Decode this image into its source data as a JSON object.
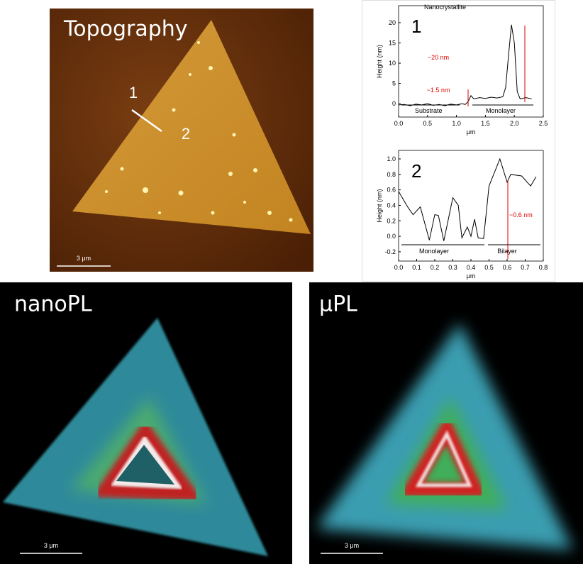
{
  "topography": {
    "label": "Topography",
    "markers": [
      "1",
      "2"
    ],
    "scale_bar": "3 μm"
  },
  "nanoPL": {
    "label": "nanoPL",
    "scale_bar": "3 μm"
  },
  "muPL": {
    "label": "μPL",
    "scale_bar": "3 μm"
  },
  "chart_data": [
    {
      "type": "line",
      "panel_label": "1",
      "x_label": "μm",
      "y_label": "Height (nm)",
      "xlim": [
        0,
        2.5
      ],
      "ylim": [
        -3.3,
        24.2
      ],
      "xticks": [
        {
          "value": 0,
          "label": "0.0"
        },
        0.5,
        {
          "value": 1,
          "label": "1.0"
        },
        1.5,
        {
          "value": 2,
          "label": "2.0"
        },
        2.5
      ],
      "yticks": [
        0,
        5,
        10,
        15,
        20
      ],
      "x": [
        0,
        0.1,
        0.2,
        0.3,
        0.4,
        0.5,
        0.6,
        0.7,
        0.8,
        0.9,
        1.0,
        1.1,
        1.15,
        1.2,
        1.25,
        1.3,
        1.4,
        1.5,
        1.6,
        1.7,
        1.8,
        1.85,
        1.9,
        1.95,
        2.0,
        2.05,
        2.1,
        2.2,
        2.3
      ],
      "series": [
        {
          "color": "#000000",
          "values": [
            -0.3,
            -0.2,
            -0.5,
            -0.1,
            -0.3,
            0,
            -0.4,
            -0.2,
            -0.5,
            -0.1,
            -0.3,
            0,
            -0.2,
            0.5,
            2.0,
            1.2,
            1.5,
            1.3,
            1.6,
            1.4,
            1.7,
            4,
            12,
            19.5,
            15,
            3,
            1.2,
            1.5,
            1.2
          ]
        }
      ],
      "annotations": [
        "Nanocrystallite",
        "~20 nm",
        "~1.5 nm",
        "Substrate",
        "Monolayer"
      ]
    },
    {
      "type": "line",
      "panel_label": "2",
      "x_label": "μm",
      "y_label": "Height (nm)",
      "xlim": [
        0,
        0.8
      ],
      "ylim": [
        -0.32,
        1.11
      ],
      "xticks": [
        {
          "value": 0,
          "label": "0.0"
        },
        0.1,
        0.2,
        0.3,
        0.4,
        0.5,
        0.6,
        0.7,
        0.8
      ],
      "yticks": [
        -0.2,
        {
          "value": 0,
          "label": "0.0"
        },
        0.2,
        0.4,
        0.6,
        0.8,
        {
          "value": 1,
          "label": "1.0"
        }
      ],
      "x": [
        0,
        0.05,
        0.08,
        0.12,
        0.17,
        0.2,
        0.22,
        0.25,
        0.3,
        0.33,
        0.35,
        0.38,
        0.4,
        0.42,
        0.44,
        0.47,
        0.5,
        0.56,
        0.6,
        0.62,
        0.68,
        0.73,
        0.76
      ],
      "series": [
        {
          "color": "#000000",
          "values": [
            0.58,
            0.38,
            0.28,
            0.38,
            -0.05,
            0.28,
            0.27,
            -0.06,
            0.5,
            0.4,
            -0.02,
            0.12,
            0,
            0.22,
            -0.02,
            -0.03,
            0.65,
            1.0,
            0.7,
            0.8,
            0.78,
            0.65,
            0.77
          ]
        }
      ],
      "annotations": [
        "~0.6 nm",
        "Monolayer",
        "Bilayer"
      ]
    }
  ]
}
